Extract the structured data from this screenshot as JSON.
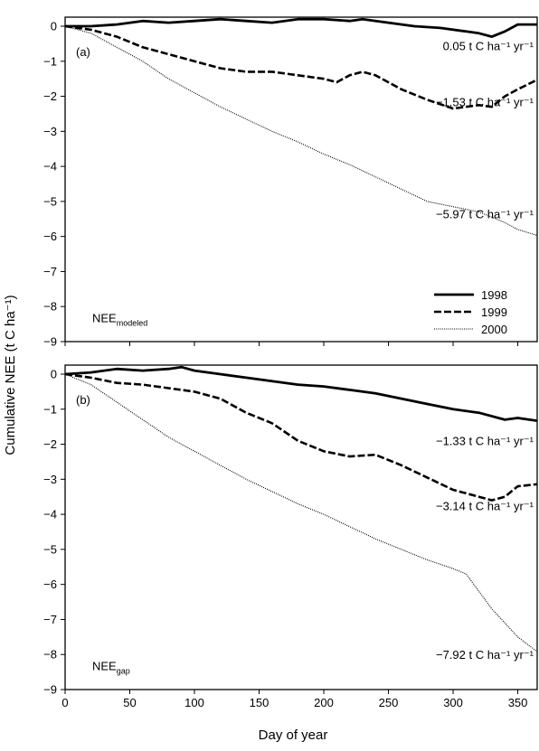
{
  "figure": {
    "ylabel": "Cumulative NEE (t C ha⁻¹)",
    "xlabel": "Day of year"
  },
  "chart_data": [
    {
      "type": "line",
      "panel_label": "(a)",
      "annotation_main": "NEE",
      "annotation_sub": "modeled",
      "xlim": [
        0,
        365
      ],
      "ylim": [
        -9,
        0
      ],
      "x_ticks": [
        0,
        50,
        100,
        150,
        200,
        250,
        300,
        350
      ],
      "y_ticks": [
        "0",
        "−1",
        "−2",
        "−3",
        "−4",
        "−5",
        "−6",
        "−7",
        "−8",
        "−9"
      ],
      "legend": {
        "position": "bottom-right",
        "entries": [
          "1998",
          "1999",
          "2000"
        ]
      },
      "series": [
        {
          "name": "1998",
          "style": "solid",
          "end_label": "0.05 t C ha⁻¹ yr⁻¹",
          "label_y": -0.55,
          "x": [
            0,
            20,
            40,
            60,
            80,
            100,
            120,
            140,
            160,
            180,
            200,
            220,
            230,
            250,
            270,
            290,
            310,
            320,
            330,
            340,
            350,
            365
          ],
          "y": [
            0,
            0,
            0.05,
            0.15,
            0.1,
            0.15,
            0.2,
            0.15,
            0.1,
            0.2,
            0.2,
            0.15,
            0.2,
            0.1,
            0.0,
            -0.05,
            -0.15,
            -0.2,
            -0.3,
            -0.15,
            0.05,
            0.05
          ]
        },
        {
          "name": "1999",
          "style": "dashed",
          "end_label": "−1.53 t C ha⁻¹ yr⁻¹",
          "label_y": -2.15,
          "x": [
            0,
            20,
            40,
            60,
            80,
            100,
            120,
            140,
            160,
            180,
            200,
            210,
            220,
            230,
            240,
            260,
            280,
            300,
            320,
            330,
            340,
            350,
            365
          ],
          "y": [
            0,
            -0.1,
            -0.3,
            -0.6,
            -0.8,
            -1.0,
            -1.2,
            -1.3,
            -1.3,
            -1.4,
            -1.5,
            -1.6,
            -1.4,
            -1.3,
            -1.4,
            -1.8,
            -2.1,
            -2.35,
            -2.25,
            -2.3,
            -2.0,
            -1.8,
            -1.53
          ]
        },
        {
          "name": "2000",
          "style": "dotted",
          "end_label": "−5.97 t C ha⁻¹ yr⁻¹",
          "label_y": -5.35,
          "x": [
            0,
            20,
            40,
            60,
            80,
            100,
            120,
            140,
            160,
            180,
            200,
            220,
            240,
            260,
            280,
            300,
            320,
            340,
            350,
            365
          ],
          "y": [
            0,
            -0.2,
            -0.6,
            -1.0,
            -1.5,
            -1.9,
            -2.3,
            -2.65,
            -3.0,
            -3.3,
            -3.65,
            -3.95,
            -4.3,
            -4.65,
            -5.0,
            -5.15,
            -5.3,
            -5.6,
            -5.8,
            -5.97
          ]
        }
      ]
    },
    {
      "type": "line",
      "panel_label": "(b)",
      "annotation_main": "NEE",
      "annotation_sub": "gap",
      "xlim": [
        0,
        365
      ],
      "ylim": [
        -9,
        0
      ],
      "x_ticks": [
        0,
        50,
        100,
        150,
        200,
        250,
        300,
        350
      ],
      "y_ticks": [
        "0",
        "−1",
        "−2",
        "−3",
        "−4",
        "−5",
        "−6",
        "−7",
        "−8",
        "−9"
      ],
      "series": [
        {
          "name": "1998",
          "style": "solid",
          "end_label": "−1.33 t C ha⁻¹ yr⁻¹",
          "label_y": -1.9,
          "x": [
            0,
            20,
            40,
            60,
            80,
            90,
            100,
            120,
            140,
            160,
            180,
            200,
            220,
            240,
            260,
            280,
            300,
            320,
            340,
            350,
            365
          ],
          "y": [
            0,
            0.05,
            0.15,
            0.1,
            0.15,
            0.2,
            0.1,
            0.0,
            -0.1,
            -0.2,
            -0.3,
            -0.35,
            -0.45,
            -0.55,
            -0.7,
            -0.85,
            -1.0,
            -1.1,
            -1.3,
            -1.25,
            -1.33
          ]
        },
        {
          "name": "1999",
          "style": "dashed",
          "end_label": "−3.14 t C ha⁻¹ yr⁻¹",
          "label_y": -3.75,
          "x": [
            0,
            20,
            40,
            60,
            80,
            100,
            120,
            140,
            160,
            180,
            200,
            220,
            240,
            260,
            280,
            300,
            320,
            330,
            340,
            350,
            365
          ],
          "y": [
            0,
            -0.1,
            -0.25,
            -0.3,
            -0.4,
            -0.5,
            -0.7,
            -1.1,
            -1.4,
            -1.9,
            -2.2,
            -2.35,
            -2.3,
            -2.6,
            -2.95,
            -3.3,
            -3.5,
            -3.6,
            -3.5,
            -3.2,
            -3.14
          ]
        },
        {
          "name": "2000",
          "style": "dotted",
          "end_label": "−7.92 t C ha⁻¹ yr⁻¹",
          "label_y": -8.0,
          "x": [
            0,
            20,
            40,
            60,
            80,
            100,
            120,
            140,
            160,
            180,
            200,
            220,
            240,
            260,
            280,
            300,
            310,
            320,
            330,
            340,
            350,
            365
          ],
          "y": [
            0,
            -0.3,
            -0.8,
            -1.3,
            -1.8,
            -2.2,
            -2.6,
            -3.0,
            -3.35,
            -3.7,
            -4.0,
            -4.35,
            -4.7,
            -5.0,
            -5.3,
            -5.55,
            -5.7,
            -6.2,
            -6.7,
            -7.1,
            -7.5,
            -7.92
          ]
        }
      ]
    }
  ]
}
